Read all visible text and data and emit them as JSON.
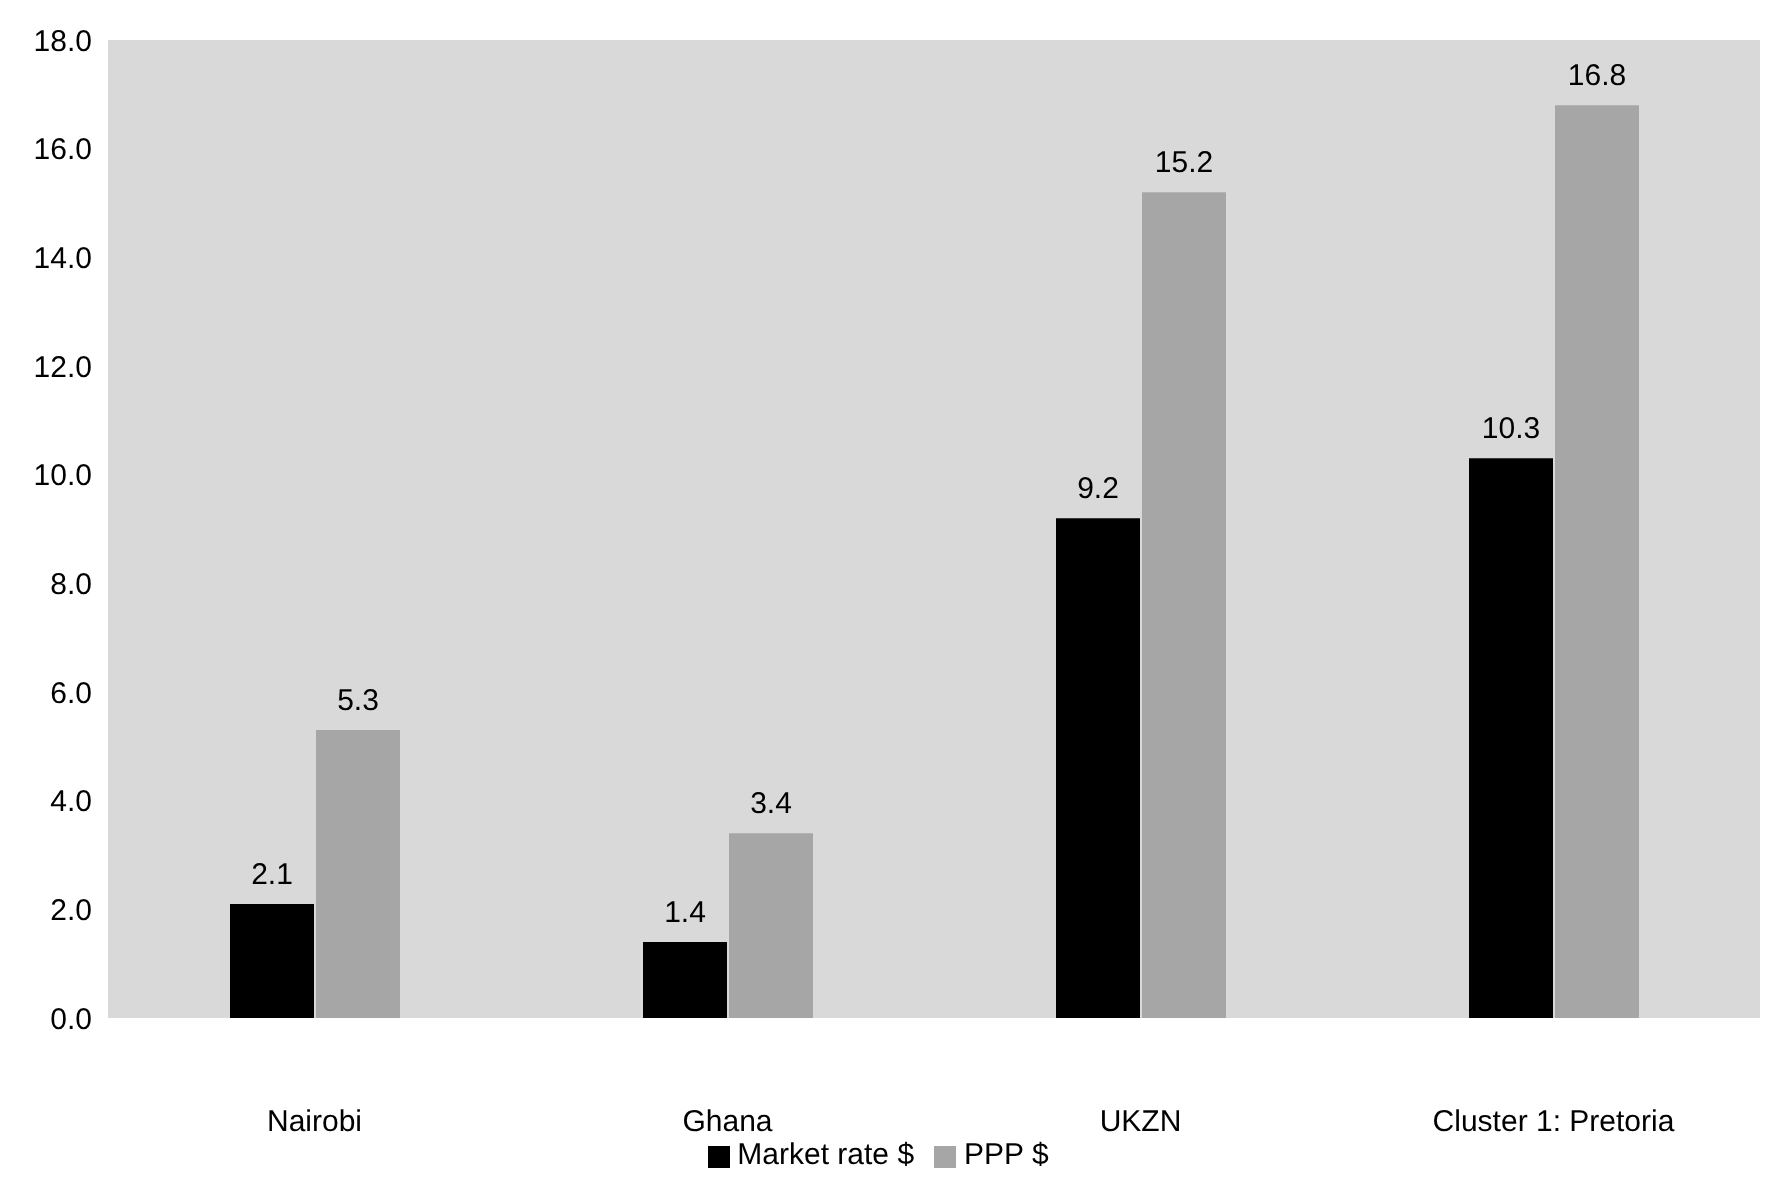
{
  "chart_data": {
    "type": "bar",
    "categories": [
      "Nairobi",
      "Ghana",
      "UKZN",
      "Cluster 1: Pretoria"
    ],
    "series": [
      {
        "name": "Market rate $",
        "color": "#000000",
        "values": [
          2.1,
          1.4,
          9.2,
          10.3
        ]
      },
      {
        "name": "PPP $",
        "color": "#a6a6a6",
        "values": [
          5.3,
          3.4,
          15.2,
          16.8
        ]
      }
    ],
    "ylim": [
      0,
      18
    ],
    "yticks": [
      {
        "value": 0,
        "label": "0.0"
      },
      {
        "value": 2,
        "label": "2.0"
      },
      {
        "value": 4,
        "label": "4.0"
      },
      {
        "value": 6,
        "label": "6.0"
      },
      {
        "value": 8,
        "label": "8.0"
      },
      {
        "value": 10,
        "label": "10.0"
      },
      {
        "value": 12,
        "label": "12.0"
      },
      {
        "value": 14,
        "label": "14.0"
      },
      {
        "value": 16,
        "label": "16.0"
      },
      {
        "value": 18,
        "label": "18.0"
      }
    ],
    "grid": false,
    "legend": "bottom",
    "data_labels": true
  }
}
